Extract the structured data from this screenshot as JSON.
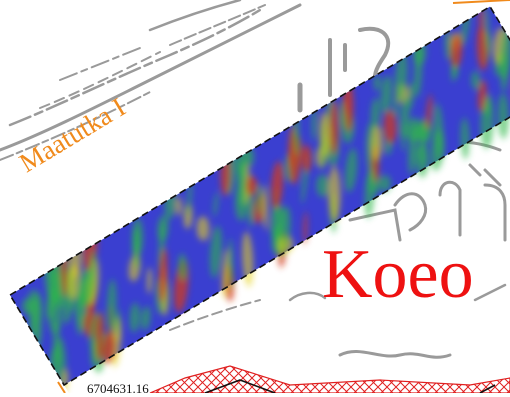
{
  "map": {
    "survey_label": "Maatutka I",
    "area_label": "Koeo",
    "coordinate_label": "6704631.16",
    "colors": {
      "survey_label": "#f08a1c",
      "area_label": "#ee1111",
      "survey_outline": "#111111",
      "survey_edge_accent": "#f08a1c",
      "hatch": "#e02020",
      "basemap_lines": "#9a9a9a",
      "radar_low": "#3a3fd0",
      "radar_mid": "#2fb84a",
      "radar_high_mid": "#e6d21a",
      "radar_high": "#d23a1a"
    }
  }
}
